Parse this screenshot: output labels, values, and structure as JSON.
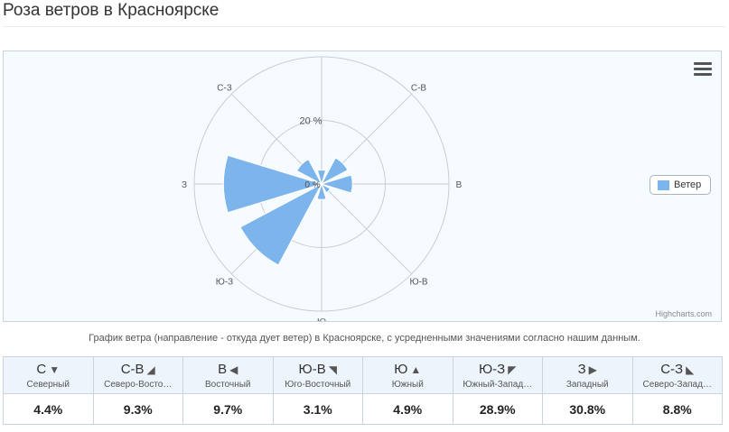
{
  "page": {
    "title": "Роза ветров в Красноярске",
    "caption": "График ветра (направление - откуда дует ветер) в Красноярске, с усредненными значениями согласно нашим данным."
  },
  "chart_data": {
    "type": "windrose",
    "directions": [
      "С",
      "С-В",
      "В",
      "Ю-В",
      "Ю",
      "Ю-З",
      "З",
      "С-З"
    ],
    "angles_deg": [
      0,
      45,
      90,
      135,
      180,
      225,
      270,
      315
    ],
    "series": [
      {
        "name": "Ветер",
        "values": [
          4.4,
          9.3,
          9.7,
          3.1,
          4.9,
          28.9,
          30.8,
          8.8
        ],
        "color": "#7cb4ec"
      }
    ],
    "radial_labels": [
      "0 %",
      "20 %"
    ],
    "radial_range": [
      0,
      40
    ],
    "legend_position": "right",
    "credits": "Highcharts.com"
  },
  "table": {
    "columns": [
      {
        "code": "С",
        "arrow": "▼",
        "name": "Северный",
        "value": "4.4%"
      },
      {
        "code": "С-В",
        "arrow": "◢",
        "name": "Северо-Восто…",
        "value": "9.3%"
      },
      {
        "code": "В",
        "arrow": "◀",
        "name": "Восточный",
        "value": "9.7%"
      },
      {
        "code": "Ю-В",
        "arrow": "◥",
        "name": "Юго-Восточный",
        "value": "3.1%"
      },
      {
        "code": "Ю",
        "arrow": "▲",
        "name": "Южный",
        "value": "4.9%"
      },
      {
        "code": "Ю-З",
        "arrow": "◤",
        "name": "Южный-Запад…",
        "value": "28.9%"
      },
      {
        "code": "З",
        "arrow": "▶",
        "name": "Западный",
        "value": "30.8%"
      },
      {
        "code": "С-З",
        "arrow": "◣",
        "name": "Северо-Запад…",
        "value": "8.8%"
      }
    ]
  }
}
